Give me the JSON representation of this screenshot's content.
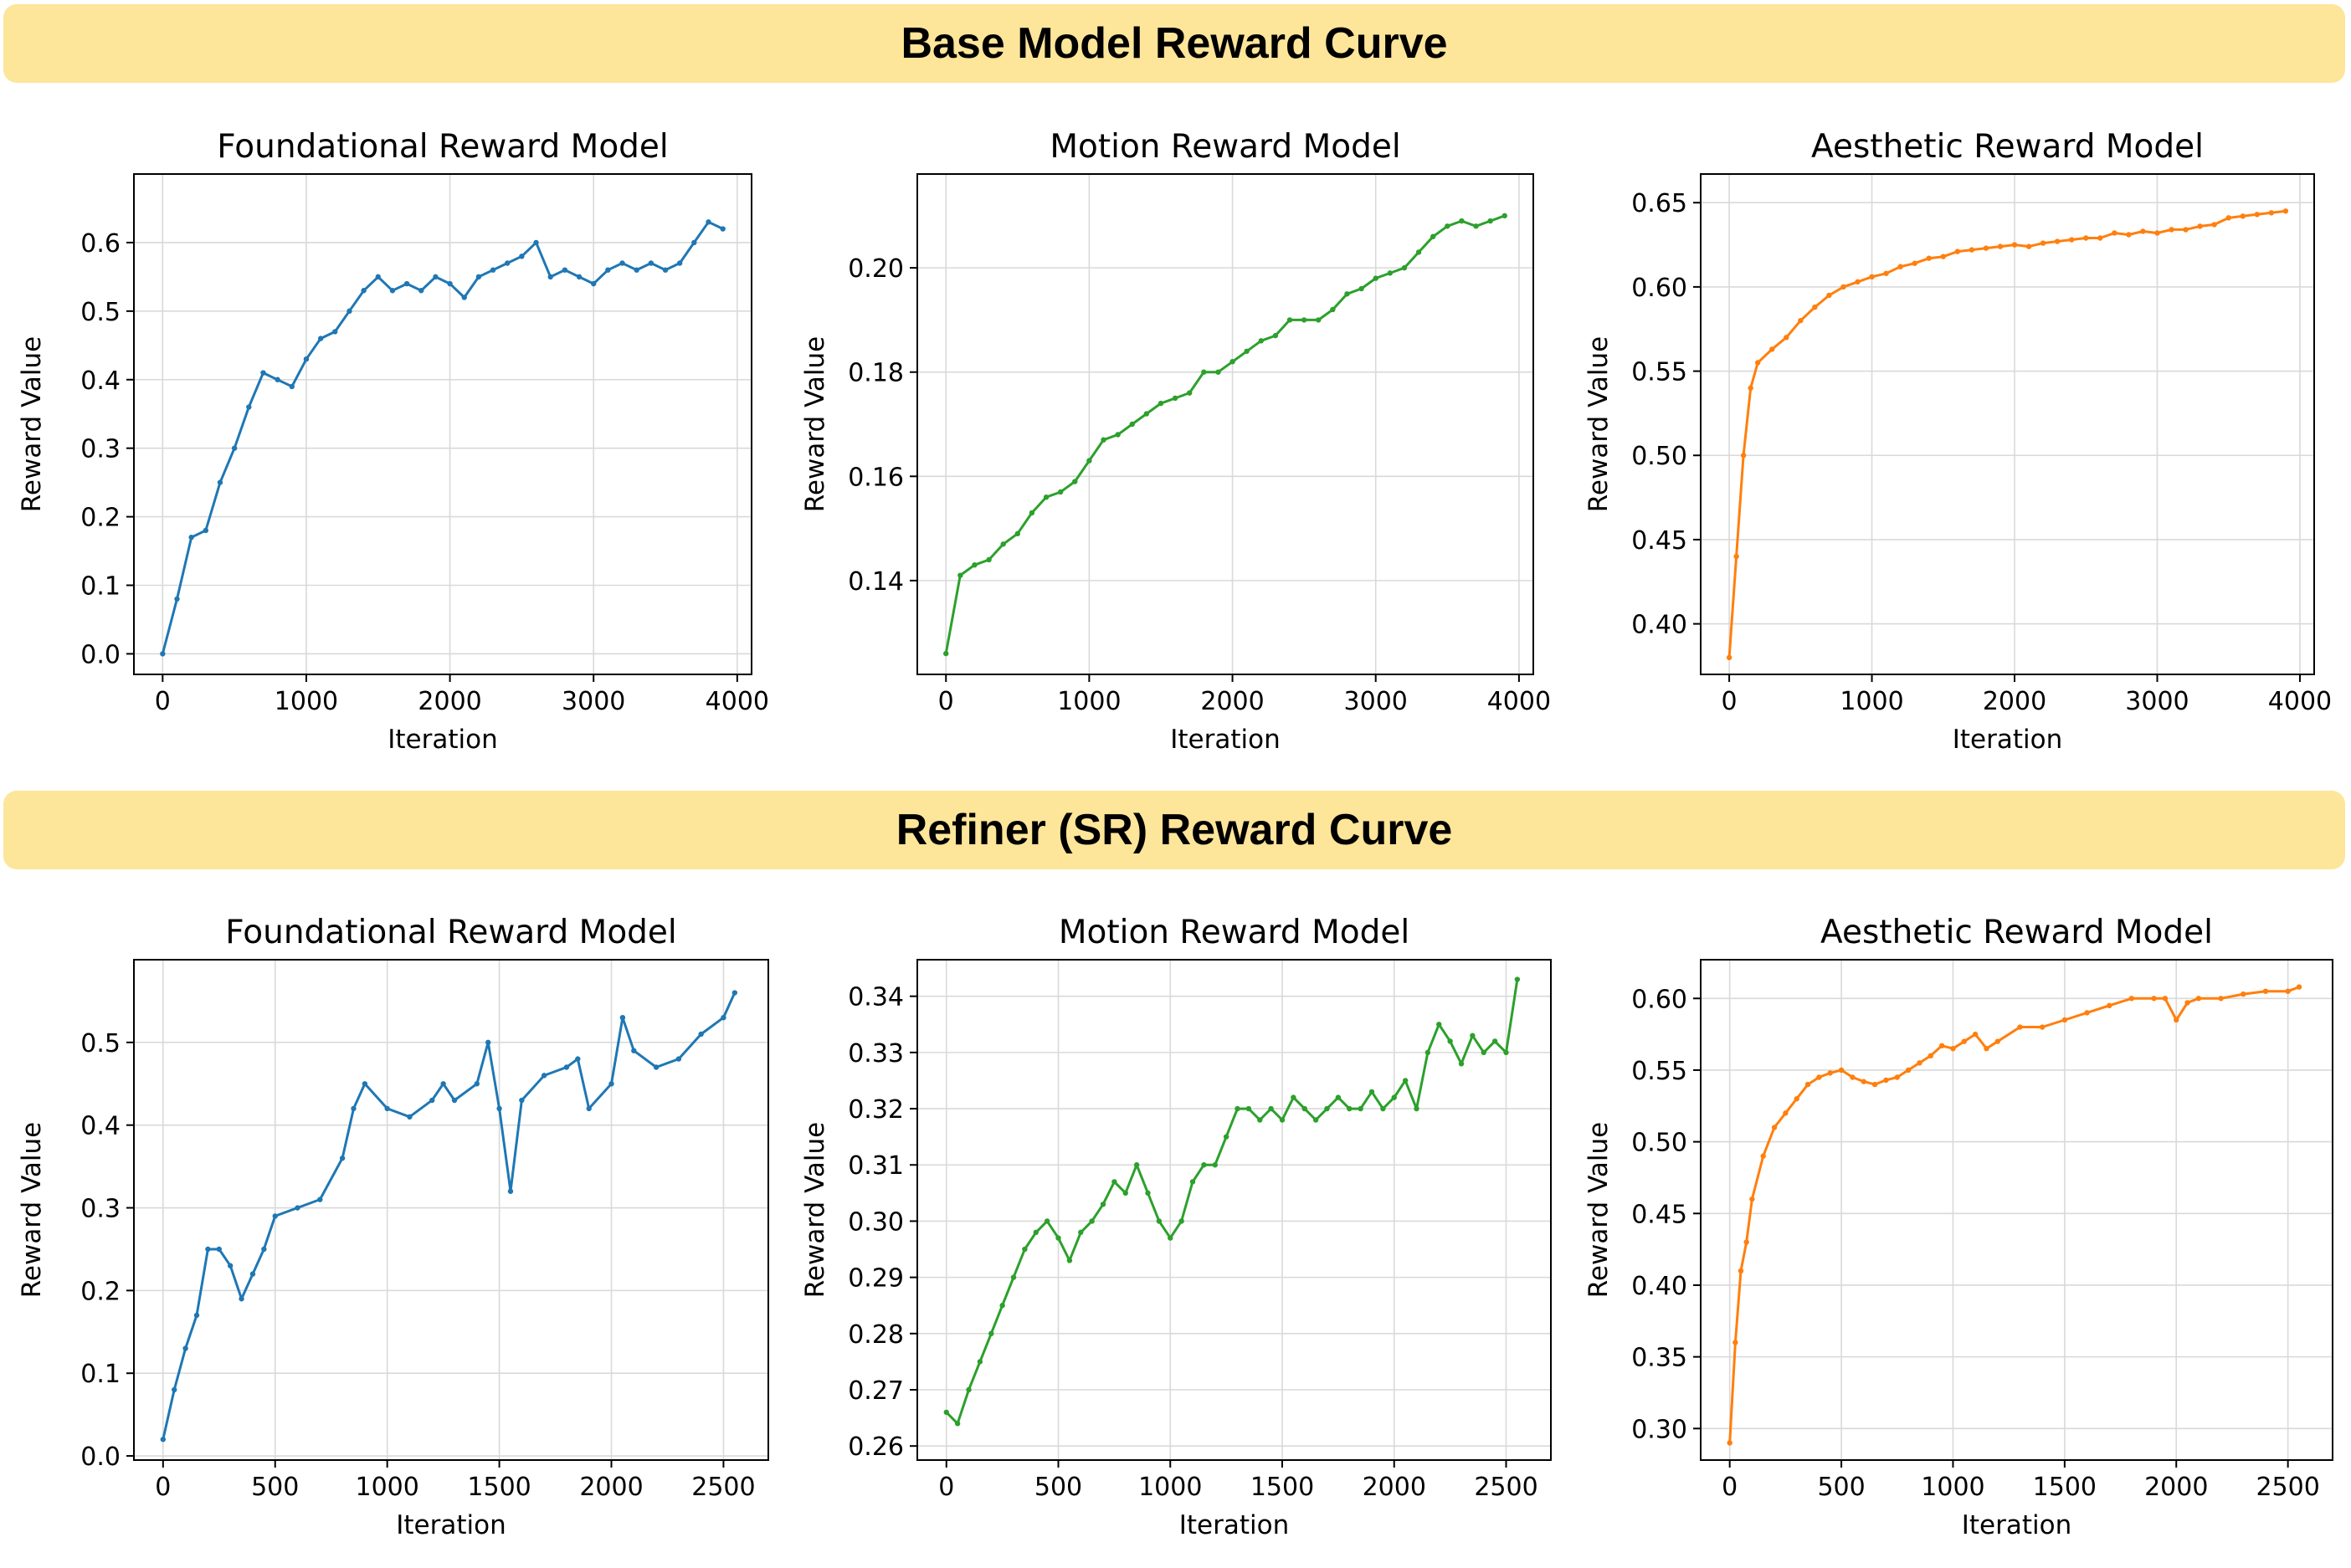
{
  "sections": [
    {
      "title": "Base Model Reward Curve"
    },
    {
      "title": "Refiner (SR) Reward Curve"
    }
  ],
  "chart_data": [
    {
      "type": "line",
      "section": 0,
      "title": "Foundational Reward Model",
      "xlabel": "Iteration",
      "ylabel": "Reward Value",
      "color": "#1f77b4",
      "xlim": [
        -200,
        4100
      ],
      "ylim": [
        -0.03,
        0.7
      ],
      "xticks": [
        0,
        1000,
        2000,
        3000,
        4000
      ],
      "yticks": [
        0.0,
        0.1,
        0.2,
        0.3,
        0.4,
        0.5,
        0.6
      ],
      "ytick_labels": [
        "0.0",
        "0.1",
        "0.2",
        "0.3",
        "0.4",
        "0.5",
        "0.6"
      ],
      "grid": true,
      "x": [
        0,
        100,
        200,
        300,
        400,
        500,
        600,
        700,
        800,
        900,
        1000,
        1100,
        1200,
        1300,
        1400,
        1500,
        1600,
        1700,
        1800,
        1900,
        2000,
        2100,
        2200,
        2300,
        2400,
        2500,
        2600,
        2700,
        2800,
        2900,
        3000,
        3100,
        3200,
        3300,
        3400,
        3500,
        3600,
        3700,
        3800,
        3900
      ],
      "y": [
        0.0,
        0.08,
        0.17,
        0.18,
        0.25,
        0.3,
        0.36,
        0.41,
        0.4,
        0.39,
        0.43,
        0.46,
        0.47,
        0.5,
        0.53,
        0.55,
        0.53,
        0.54,
        0.53,
        0.55,
        0.54,
        0.52,
        0.55,
        0.56,
        0.57,
        0.58,
        0.6,
        0.55,
        0.56,
        0.55,
        0.54,
        0.56,
        0.57,
        0.56,
        0.57,
        0.56,
        0.57,
        0.6,
        0.63,
        0.62
      ]
    },
    {
      "type": "line",
      "section": 0,
      "title": "Motion Reward Model",
      "xlabel": "Iteration",
      "ylabel": "Reward Value",
      "color": "#2ca02c",
      "xlim": [
        -200,
        4100
      ],
      "ylim": [
        0.122,
        0.218
      ],
      "xticks": [
        0,
        1000,
        2000,
        3000,
        4000
      ],
      "yticks": [
        0.14,
        0.16,
        0.18,
        0.2
      ],
      "ytick_labels": [
        "0.14",
        "0.16",
        "0.18",
        "0.20"
      ],
      "grid": true,
      "x": [
        0,
        100,
        200,
        300,
        400,
        500,
        600,
        700,
        800,
        900,
        1000,
        1100,
        1200,
        1300,
        1400,
        1500,
        1600,
        1700,
        1800,
        1900,
        2000,
        2100,
        2200,
        2300,
        2400,
        2500,
        2600,
        2700,
        2800,
        2900,
        3000,
        3100,
        3200,
        3300,
        3400,
        3500,
        3600,
        3700,
        3800,
        3900
      ],
      "y": [
        0.126,
        0.141,
        0.143,
        0.144,
        0.147,
        0.149,
        0.153,
        0.156,
        0.157,
        0.159,
        0.163,
        0.167,
        0.168,
        0.17,
        0.172,
        0.174,
        0.175,
        0.176,
        0.18,
        0.18,
        0.182,
        0.184,
        0.186,
        0.187,
        0.19,
        0.19,
        0.19,
        0.192,
        0.195,
        0.196,
        0.198,
        0.199,
        0.2,
        0.203,
        0.206,
        0.208,
        0.209,
        0.208,
        0.209,
        0.21
      ]
    },
    {
      "type": "line",
      "section": 0,
      "title": "Aesthetic Reward Model",
      "xlabel": "Iteration",
      "ylabel": "Reward Value",
      "color": "#ff7f0e",
      "xlim": [
        -200,
        4100
      ],
      "ylim": [
        0.37,
        0.667
      ],
      "xticks": [
        0,
        1000,
        2000,
        3000,
        4000
      ],
      "yticks": [
        0.4,
        0.45,
        0.5,
        0.55,
        0.6,
        0.65
      ],
      "ytick_labels": [
        "0.40",
        "0.45",
        "0.50",
        "0.55",
        "0.60",
        "0.65"
      ],
      "grid": true,
      "x": [
        0,
        50,
        100,
        150,
        200,
        300,
        400,
        500,
        600,
        700,
        800,
        900,
        1000,
        1100,
        1200,
        1300,
        1400,
        1500,
        1600,
        1700,
        1800,
        1900,
        2000,
        2100,
        2200,
        2300,
        2400,
        2500,
        2600,
        2700,
        2800,
        2900,
        3000,
        3100,
        3200,
        3300,
        3400,
        3500,
        3600,
        3700,
        3800,
        3900
      ],
      "y": [
        0.38,
        0.44,
        0.5,
        0.54,
        0.555,
        0.563,
        0.57,
        0.58,
        0.588,
        0.595,
        0.6,
        0.603,
        0.606,
        0.608,
        0.612,
        0.614,
        0.617,
        0.618,
        0.621,
        0.622,
        0.623,
        0.624,
        0.625,
        0.624,
        0.626,
        0.627,
        0.628,
        0.629,
        0.629,
        0.632,
        0.631,
        0.633,
        0.632,
        0.634,
        0.634,
        0.636,
        0.637,
        0.641,
        0.642,
        0.643,
        0.644,
        0.645
      ]
    },
    {
      "type": "line",
      "section": 1,
      "title": "Foundational Reward Model",
      "xlabel": "Iteration",
      "ylabel": "Reward Value",
      "color": "#1f77b4",
      "xlim": [
        -130,
        2700
      ],
      "ylim": [
        -0.005,
        0.6
      ],
      "xticks": [
        0,
        500,
        1000,
        1500,
        2000,
        2500
      ],
      "yticks": [
        0.0,
        0.1,
        0.2,
        0.3,
        0.4,
        0.5
      ],
      "ytick_labels": [
        "0.0",
        "0.1",
        "0.2",
        "0.3",
        "0.4",
        "0.5"
      ],
      "grid": true,
      "x": [
        0,
        50,
        100,
        150,
        200,
        250,
        300,
        350,
        400,
        450,
        500,
        600,
        700,
        800,
        850,
        900,
        1000,
        1100,
        1200,
        1250,
        1300,
        1400,
        1450,
        1500,
        1550,
        1600,
        1700,
        1800,
        1850,
        1900,
        2000,
        2050,
        2100,
        2200,
        2300,
        2400,
        2500,
        2550
      ],
      "y": [
        0.02,
        0.08,
        0.13,
        0.17,
        0.25,
        0.25,
        0.23,
        0.19,
        0.22,
        0.25,
        0.29,
        0.3,
        0.31,
        0.36,
        0.42,
        0.45,
        0.42,
        0.41,
        0.43,
        0.45,
        0.43,
        0.45,
        0.5,
        0.42,
        0.32,
        0.43,
        0.46,
        0.47,
        0.48,
        0.42,
        0.45,
        0.53,
        0.49,
        0.47,
        0.48,
        0.51,
        0.53,
        0.56
      ]
    },
    {
      "type": "line",
      "section": 1,
      "title": "Motion Reward Model",
      "xlabel": "Iteration",
      "ylabel": "Reward Value",
      "color": "#2ca02c",
      "xlim": [
        -130,
        2700
      ],
      "ylim": [
        0.2575,
        0.3465
      ],
      "xticks": [
        0,
        500,
        1000,
        1500,
        2000,
        2500
      ],
      "yticks": [
        0.26,
        0.27,
        0.28,
        0.29,
        0.3,
        0.31,
        0.32,
        0.33,
        0.34
      ],
      "ytick_labels": [
        "0.26",
        "0.27",
        "0.28",
        "0.29",
        "0.30",
        "0.31",
        "0.32",
        "0.33",
        "0.34"
      ],
      "grid": true,
      "x": [
        0,
        50,
        100,
        150,
        200,
        250,
        300,
        350,
        400,
        450,
        500,
        550,
        600,
        650,
        700,
        750,
        800,
        850,
        900,
        950,
        1000,
        1050,
        1100,
        1150,
        1200,
        1250,
        1300,
        1350,
        1400,
        1450,
        1500,
        1550,
        1600,
        1650,
        1700,
        1750,
        1800,
        1850,
        1900,
        1950,
        2000,
        2050,
        2100,
        2150,
        2200,
        2250,
        2300,
        2350,
        2400,
        2450,
        2500,
        2550
      ],
      "y": [
        0.266,
        0.264,
        0.27,
        0.275,
        0.28,
        0.285,
        0.29,
        0.295,
        0.298,
        0.3,
        0.297,
        0.293,
        0.298,
        0.3,
        0.303,
        0.307,
        0.305,
        0.31,
        0.305,
        0.3,
        0.297,
        0.3,
        0.307,
        0.31,
        0.31,
        0.315,
        0.32,
        0.32,
        0.318,
        0.32,
        0.318,
        0.322,
        0.32,
        0.318,
        0.32,
        0.322,
        0.32,
        0.32,
        0.323,
        0.32,
        0.322,
        0.325,
        0.32,
        0.33,
        0.335,
        0.332,
        0.328,
        0.333,
        0.33,
        0.332,
        0.33,
        0.343
      ]
    },
    {
      "type": "line",
      "section": 1,
      "title": "Aesthetic Reward Model",
      "xlabel": "Iteration",
      "ylabel": "Reward Value",
      "color": "#ff7f0e",
      "xlim": [
        -130,
        2700
      ],
      "ylim": [
        0.278,
        0.627
      ],
      "xticks": [
        0,
        500,
        1000,
        1500,
        2000,
        2500
      ],
      "yticks": [
        0.3,
        0.35,
        0.4,
        0.45,
        0.5,
        0.55,
        0.6
      ],
      "ytick_labels": [
        "0.30",
        "0.35",
        "0.40",
        "0.45",
        "0.50",
        "0.55",
        "0.60"
      ],
      "grid": true,
      "x": [
        0,
        25,
        50,
        75,
        100,
        150,
        200,
        250,
        300,
        350,
        400,
        450,
        500,
        550,
        600,
        650,
        700,
        750,
        800,
        850,
        900,
        950,
        1000,
        1050,
        1100,
        1150,
        1200,
        1300,
        1400,
        1500,
        1600,
        1700,
        1800,
        1900,
        1950,
        2000,
        2050,
        2100,
        2200,
        2300,
        2400,
        2500,
        2550
      ],
      "y": [
        0.29,
        0.36,
        0.41,
        0.43,
        0.46,
        0.49,
        0.51,
        0.52,
        0.53,
        0.54,
        0.545,
        0.548,
        0.55,
        0.545,
        0.542,
        0.54,
        0.543,
        0.545,
        0.55,
        0.555,
        0.56,
        0.567,
        0.565,
        0.57,
        0.575,
        0.565,
        0.57,
        0.58,
        0.58,
        0.585,
        0.59,
        0.595,
        0.6,
        0.6,
        0.6,
        0.585,
        0.597,
        0.6,
        0.6,
        0.603,
        0.605,
        0.605,
        0.608
      ]
    }
  ]
}
